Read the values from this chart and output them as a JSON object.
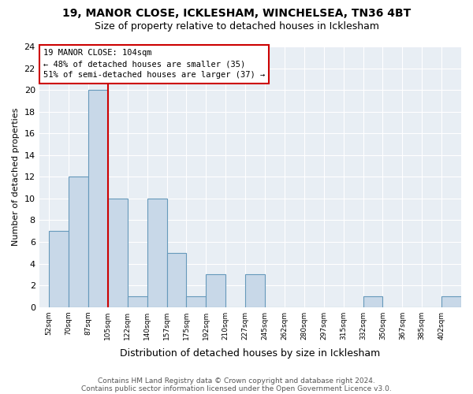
{
  "title1": "19, MANOR CLOSE, ICKLESHAM, WINCHELSEA, TN36 4BT",
  "title2": "Size of property relative to detached houses in Icklesham",
  "xlabel": "Distribution of detached houses by size in Icklesham",
  "ylabel": "Number of detached properties",
  "footer1": "Contains HM Land Registry data © Crown copyright and database right 2024.",
  "footer2": "Contains public sector information licensed under the Open Government Licence v3.0.",
  "bin_labels": [
    "52sqm",
    "70sqm",
    "87sqm",
    "105sqm",
    "122sqm",
    "140sqm",
    "157sqm",
    "175sqm",
    "192sqm",
    "210sqm",
    "227sqm",
    "245sqm",
    "262sqm",
    "280sqm",
    "297sqm",
    "315sqm",
    "332sqm",
    "350sqm",
    "367sqm",
    "385sqm",
    "402sqm"
  ],
  "bar_values": [
    7,
    12,
    20,
    10,
    1,
    10,
    5,
    1,
    3,
    0,
    3,
    0,
    0,
    0,
    0,
    0,
    1,
    0,
    0,
    0,
    1
  ],
  "bar_color": "#c8d8e8",
  "bar_edge_color": "#6699bb",
  "property_line_color": "#cc0000",
  "annotation_title": "19 MANOR CLOSE: 104sqm",
  "annotation_line1": "← 48% of detached houses are smaller (35)",
  "annotation_line2": "51% of semi-detached houses are larger (37) →",
  "annotation_box_edge_color": "#cc0000",
  "ylim": [
    0,
    24
  ],
  "yticks": [
    0,
    2,
    4,
    6,
    8,
    10,
    12,
    14,
    16,
    18,
    20,
    22,
    24
  ],
  "background_color": "#ffffff",
  "plot_bg_color": "#e8eef4",
  "grid_color": "#ffffff",
  "title1_fontsize": 10,
  "title2_fontsize": 9,
  "footer_fontsize": 6.5
}
